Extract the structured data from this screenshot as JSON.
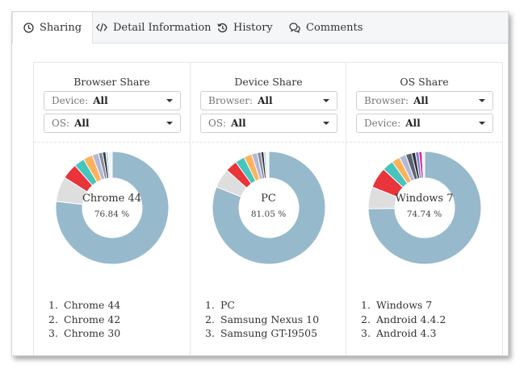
{
  "tabs": [
    {
      "label": "Sharing",
      "icon": "clock-icon",
      "active": true
    },
    {
      "label": "Detail Information",
      "icon": "code-icon",
      "active": false
    },
    {
      "label": "History",
      "icon": "history-icon",
      "active": false
    },
    {
      "label": "Comments",
      "icon": "comments-icon",
      "active": false
    }
  ],
  "colors": {
    "primary_slice": "#97b9cc",
    "accent": "#f4f6f7"
  },
  "panels": [
    {
      "title": "Browser Share",
      "filters": [
        {
          "label": "Device:",
          "value": "All"
        },
        {
          "label": "OS:",
          "value": "All"
        }
      ],
      "center_name": "Chrome 44",
      "center_pct": "76.84 %",
      "top_list": [
        {
          "num": "1.",
          "name": "Chrome 44"
        },
        {
          "num": "2.",
          "name": "Chrome 42"
        },
        {
          "num": "3.",
          "name": "Chrome 30"
        }
      ],
      "slices": [
        {
          "value": 76.84,
          "color": "#97b9cc"
        },
        {
          "value": 7.2,
          "color": "#dedede"
        },
        {
          "value": 4.5,
          "color": "#e8343a"
        },
        {
          "value": 3.0,
          "color": "#47c4be"
        },
        {
          "value": 2.7,
          "color": "#ffb25a"
        },
        {
          "value": 1.8,
          "color": "#b3b8d6"
        },
        {
          "value": 1.2,
          "color": "#8a8f9c"
        },
        {
          "value": 0.9,
          "color": "#273441"
        },
        {
          "value": 0.7,
          "color": "#b7d3e0"
        },
        {
          "value": 1.16,
          "color": "#f4f4f4"
        }
      ]
    },
    {
      "title": "Device Share",
      "filters": [
        {
          "label": "Browser:",
          "value": "All"
        },
        {
          "label": "OS:",
          "value": "All"
        }
      ],
      "center_name": "PC",
      "center_pct": "81.05 %",
      "top_list": [
        {
          "num": "1.",
          "name": "PC"
        },
        {
          "num": "2.",
          "name": "Samsung Nexus 10"
        },
        {
          "num": "3.",
          "name": "Samsung GT-I9505"
        }
      ],
      "slices": [
        {
          "value": 81.05,
          "color": "#97b9cc"
        },
        {
          "value": 5.6,
          "color": "#dedede"
        },
        {
          "value": 3.4,
          "color": "#e8343a"
        },
        {
          "value": 2.7,
          "color": "#47c4be"
        },
        {
          "value": 2.3,
          "color": "#ffb25a"
        },
        {
          "value": 1.6,
          "color": "#b3b8d6"
        },
        {
          "value": 1.1,
          "color": "#8a8f9c"
        },
        {
          "value": 0.8,
          "color": "#273441"
        },
        {
          "value": 0.6,
          "color": "#b7d3e0"
        },
        {
          "value": 0.85,
          "color": "#f4f4f4"
        }
      ]
    },
    {
      "title": "OS Share",
      "filters": [
        {
          "label": "Browser:",
          "value": "All"
        },
        {
          "label": "Device:",
          "value": "All"
        }
      ],
      "center_name": "Windows 7",
      "center_pct": "74.74 %",
      "top_list": [
        {
          "num": "1.",
          "name": "Windows 7"
        },
        {
          "num": "2.",
          "name": "Android 4.4.2"
        },
        {
          "num": "3.",
          "name": "Android 4.3"
        }
      ],
      "slices": [
        {
          "value": 74.74,
          "color": "#97b9cc"
        },
        {
          "value": 6.3,
          "color": "#dedede"
        },
        {
          "value": 6.0,
          "color": "#e8343a"
        },
        {
          "value": 3.2,
          "color": "#47c4be"
        },
        {
          "value": 2.4,
          "color": "#ffb25a"
        },
        {
          "value": 1.9,
          "color": "#b3b8d6"
        },
        {
          "value": 1.7,
          "color": "#5a6270"
        },
        {
          "value": 1.1,
          "color": "#273441"
        },
        {
          "value": 1.0,
          "color": "#8a7fbf"
        },
        {
          "value": 0.9,
          "color": "#cc2aa8"
        },
        {
          "value": 0.76,
          "color": "#f4f4f4"
        }
      ]
    }
  ]
}
